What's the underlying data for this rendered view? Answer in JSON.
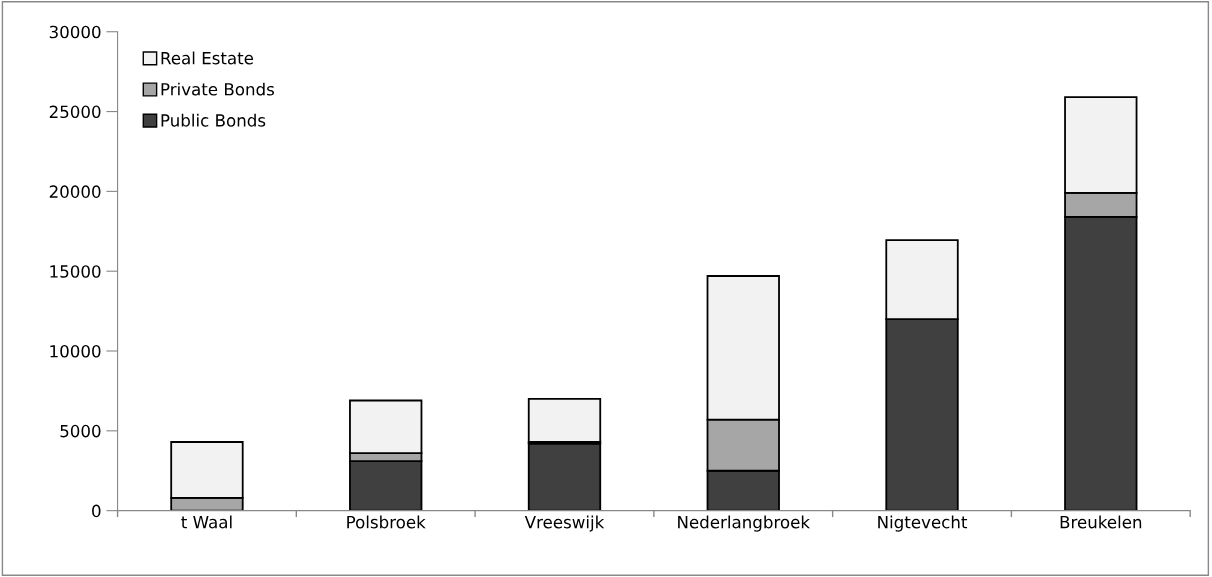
{
  "chart_data": {
    "type": "bar",
    "stacked": true,
    "categories": [
      "t Waal",
      "Polsbroek",
      "Vreeswijk",
      "Nederlangbroek",
      "Nigtevecht",
      "Breukelen"
    ],
    "series": [
      {
        "name": "Public Bonds",
        "color": "#404040",
        "values": [
          0,
          3100,
          4200,
          2500,
          12000,
          18400
        ]
      },
      {
        "name": "Private Bonds",
        "color": "#a6a6a6",
        "values": [
          800,
          500,
          100,
          3200,
          0,
          1500
        ]
      },
      {
        "name": "Real Estate",
        "color": "#f2f2f2",
        "values": [
          3500,
          3300,
          2700,
          9000,
          4950,
          6000
        ]
      }
    ],
    "ylim": [
      0,
      30000
    ],
    "yticks": [
      0,
      5000,
      10000,
      15000,
      20000,
      25000,
      30000
    ],
    "grid": false,
    "legend": "top left"
  }
}
